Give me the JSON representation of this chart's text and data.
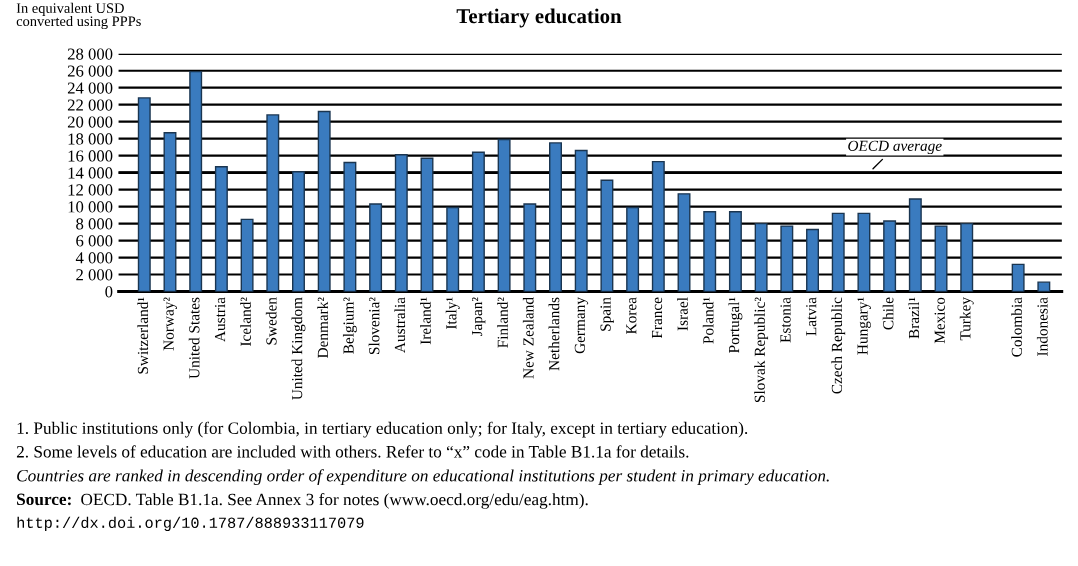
{
  "chart_data": {
    "type": "bar",
    "title": "Tertiary education",
    "ylabel": "In equivalent USD\nconverted using PPPs",
    "categories": [
      "Switzerland¹",
      "Norway²",
      "United States",
      "Austria",
      "Iceland²",
      "Sweden",
      "United Kingdom",
      "Denmark²",
      "Belgium²",
      "Slovenia²",
      "Australia",
      "Ireland¹",
      "Italy¹",
      "Japan²",
      "Finland²",
      "New Zealand",
      "Netherlands",
      "Germany",
      "Spain",
      "Korea",
      "France",
      "Israel",
      "Poland¹",
      "Portugal¹",
      "Slovak Republic²",
      "Estonia",
      "Latvia",
      "Czech Republic",
      "Hungary¹",
      "Chile",
      "Brazil¹",
      "Mexico",
      "Turkey",
      null,
      "Colombia",
      "Indonesia"
    ],
    "values": [
      22800,
      18700,
      25900,
      14700,
      8500,
      20800,
      14100,
      21200,
      15200,
      10300,
      16100,
      15700,
      9900,
      16400,
      17900,
      10300,
      17500,
      16600,
      13100,
      9900,
      15300,
      11500,
      9400,
      9400,
      8000,
      7700,
      7300,
      9200,
      9200,
      8300,
      10900,
      7700,
      8000,
      null,
      3200,
      1100
    ],
    "color": "#3a7bbf",
    "ylim": [
      0,
      28000
    ],
    "yticks": [
      {
        "value": 0,
        "label": "0"
      },
      {
        "value": 2000,
        "label": "2 000"
      },
      {
        "value": 4000,
        "label": "4 000"
      },
      {
        "value": 6000,
        "label": "6 000"
      },
      {
        "value": 8000,
        "label": "8 000"
      },
      {
        "value": 10000,
        "label": "10 000"
      },
      {
        "value": 12000,
        "label": "12 000"
      },
      {
        "value": 14000,
        "label": "14 000"
      },
      {
        "value": 16000,
        "label": "16 000"
      },
      {
        "value": 18000,
        "label": "18 000"
      },
      {
        "value": 20000,
        "label": "20 000"
      },
      {
        "value": 22000,
        "label": "22 000"
      },
      {
        "value": 24000,
        "label": "24 000"
      },
      {
        "value": 26000,
        "label": "26 000"
      },
      {
        "value": 28000,
        "label": "28 000"
      }
    ],
    "grid": "y",
    "ref_lines": [
      {
        "axis": "y",
        "value": 14000,
        "label": "OECD average",
        "color": "#000000"
      }
    ],
    "annotations": [
      "1. Public institutions only (for Colombia, in tertiary education only; for Italy, except in tertiary education).",
      "2. Some levels of education are included with others. Refer to “x” code in Table B1.1a for details.",
      "Countries are ranked in descending order of expenditure on educational institutions per student in primary education.",
      "Source: OECD. Table B1.1a. See Annex 3 for notes (www.oecd.org/edu/eag.htm).",
      "http://dx.doi.org/10.1787/888933117079"
    ]
  }
}
